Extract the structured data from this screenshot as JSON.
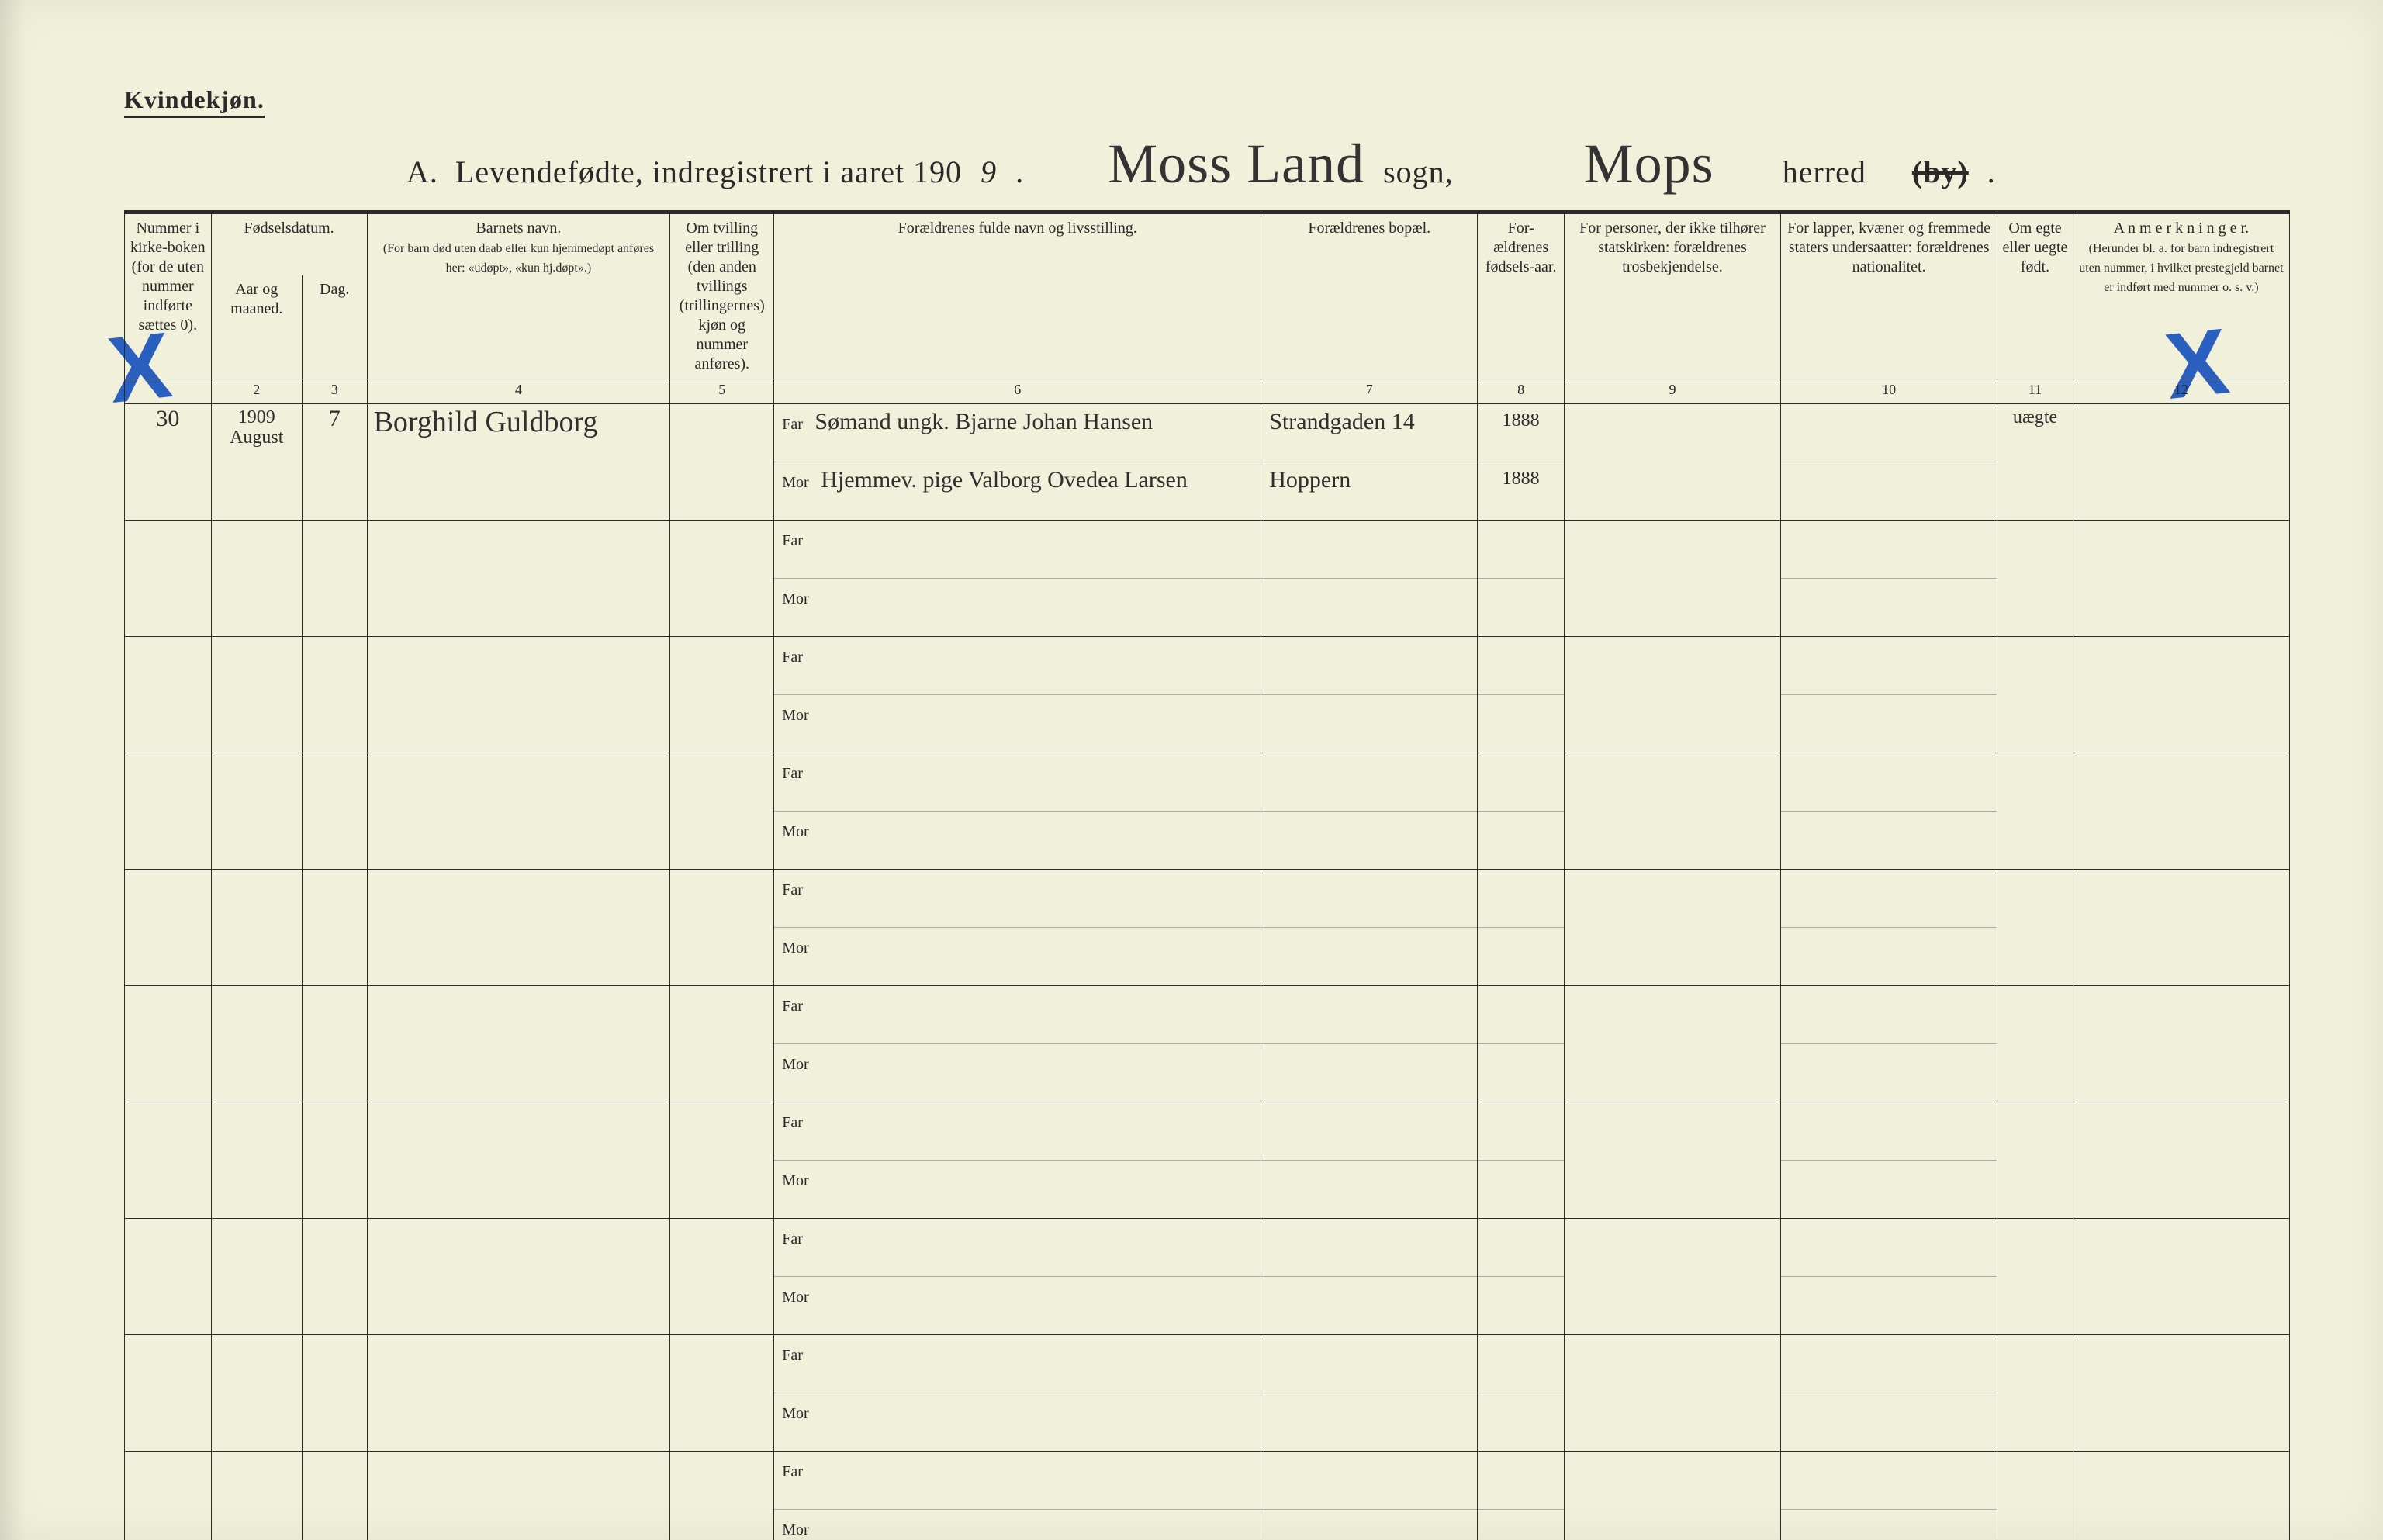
{
  "colors": {
    "paper_bg": "#f1f0da",
    "ink": "#2a2a2a",
    "handwriting": "#2f2f2f",
    "blue_x": "#2a5fbf",
    "faint_rule": "#2a2a2a55"
  },
  "typography": {
    "print_family": "Times New Roman",
    "hand_family": "Brush Script MT",
    "header_size_pt": 20,
    "body_size_pt": 22,
    "title_size_pt": 40,
    "hand_large_pt": 72
  },
  "page": {
    "top_label": "Kvindekjøn.",
    "title_prefix": "A.  Levendefødte, indregistrert i aaret 190",
    "title_year_digit": "9",
    "title_dot": ".",
    "hand_sogn": "Moss Land",
    "label_sogn": "sogn,",
    "hand_herred": "Mops",
    "label_herred": "herred",
    "label_by_struck": "(by)",
    "title_tail_dot": "."
  },
  "columns": [
    {
      "num": "1",
      "head": "Nummer i kirke-boken (for de uten nummer indførte sættes 0)."
    },
    {
      "num": "2",
      "head": "Fødselsdatum.",
      "sub1": "Aar og maaned.",
      "sub2": "Dag."
    },
    {
      "num": "3",
      "head": ""
    },
    {
      "num": "4",
      "head": "Barnets navn.",
      "sub": "(For barn død uten daab eller kun hjemmedøpt anføres her: «udøpt», «kun hj.døpt».)"
    },
    {
      "num": "5",
      "head": "Om tvilling eller trilling (den anden tvillings (trillingernes) kjøn og nummer anføres)."
    },
    {
      "num": "6",
      "head": "Forældrenes fulde navn og livsstilling."
    },
    {
      "num": "7",
      "head": "Forældrenes bopæl."
    },
    {
      "num": "8",
      "head": "For-ældrenes fødsels-aar."
    },
    {
      "num": "9",
      "head": "For personer, der ikke tilhører statskirken: forældrenes trosbekjendelse."
    },
    {
      "num": "10",
      "head": "For lapper, kvæner og fremmede staters undersaatter: forældrenes nationalitet."
    },
    {
      "num": "11",
      "head": "Om egte eller uegte født."
    },
    {
      "num": "12",
      "head": "A n m e r k n i n g e r.",
      "sub": "(Herunder bl. a. for barn indregistrert uten nummer, i hvilket prestegjeld barnet er indført med nummer o. s. v.)"
    }
  ],
  "colnums": [
    "",
    "2",
    "3",
    "4",
    "5",
    "6",
    "7",
    "8",
    "9",
    "10",
    "11",
    "12"
  ],
  "far_label": "Far",
  "mor_label": "Mor",
  "entries": [
    {
      "number": "30",
      "year_month": "1909 August",
      "day": "7",
      "child_name": "Borghild Guldborg",
      "twin": "",
      "far_full": "Sømand ungk. Bjarne Johan Hansen",
      "mor_full": "Hjemmev. pige Valborg Ovedea Larsen",
      "far_bopael": "Strandgaden 14",
      "mor_bopael": "Hoppern",
      "far_year": "1888",
      "mor_year": "1888",
      "col9": "",
      "col10": "",
      "col11": "uægte",
      "col12": ""
    },
    {
      "number": "",
      "year_month": "",
      "day": "",
      "child_name": "",
      "twin": "",
      "far_full": "",
      "mor_full": "",
      "far_bopael": "",
      "mor_bopael": "",
      "far_year": "",
      "mor_year": "",
      "col9": "",
      "col10": "",
      "col11": "",
      "col12": ""
    },
    {
      "number": "",
      "year_month": "",
      "day": "",
      "child_name": "",
      "twin": "",
      "far_full": "",
      "mor_full": "",
      "far_bopael": "",
      "mor_bopael": "",
      "far_year": "",
      "mor_year": "",
      "col9": "",
      "col10": "",
      "col11": "",
      "col12": ""
    },
    {
      "number": "",
      "year_month": "",
      "day": "",
      "child_name": "",
      "twin": "",
      "far_full": "",
      "mor_full": "",
      "far_bopael": "",
      "mor_bopael": "",
      "far_year": "",
      "mor_year": "",
      "col9": "",
      "col10": "",
      "col11": "",
      "col12": ""
    },
    {
      "number": "",
      "year_month": "",
      "day": "",
      "child_name": "",
      "twin": "",
      "far_full": "",
      "mor_full": "",
      "far_bopael": "",
      "mor_bopael": "",
      "far_year": "",
      "mor_year": "",
      "col9": "",
      "col10": "",
      "col11": "",
      "col12": ""
    },
    {
      "number": "",
      "year_month": "",
      "day": "",
      "child_name": "",
      "twin": "",
      "far_full": "",
      "mor_full": "",
      "far_bopael": "",
      "mor_bopael": "",
      "far_year": "",
      "mor_year": "",
      "col9": "",
      "col10": "",
      "col11": "",
      "col12": ""
    },
    {
      "number": "",
      "year_month": "",
      "day": "",
      "child_name": "",
      "twin": "",
      "far_full": "",
      "mor_full": "",
      "far_bopael": "",
      "mor_bopael": "",
      "far_year": "",
      "mor_year": "",
      "col9": "",
      "col10": "",
      "col11": "",
      "col12": ""
    },
    {
      "number": "",
      "year_month": "",
      "day": "",
      "child_name": "",
      "twin": "",
      "far_full": "",
      "mor_full": "",
      "far_bopael": "",
      "mor_bopael": "",
      "far_year": "",
      "mor_year": "",
      "col9": "",
      "col10": "",
      "col11": "",
      "col12": ""
    },
    {
      "number": "",
      "year_month": "",
      "day": "",
      "child_name": "",
      "twin": "",
      "far_full": "",
      "mor_full": "",
      "far_bopael": "",
      "mor_bopael": "",
      "far_year": "",
      "mor_year": "",
      "col9": "",
      "col10": "",
      "col11": "",
      "col12": ""
    },
    {
      "number": "",
      "year_month": "",
      "day": "",
      "child_name": "",
      "twin": "",
      "far_full": "",
      "mor_full": "",
      "far_bopael": "",
      "mor_bopael": "",
      "far_year": "",
      "mor_year": "",
      "col9": "",
      "col10": "",
      "col11": "",
      "col12": ""
    }
  ],
  "marks": {
    "left_x": "X",
    "right_x": "X"
  }
}
